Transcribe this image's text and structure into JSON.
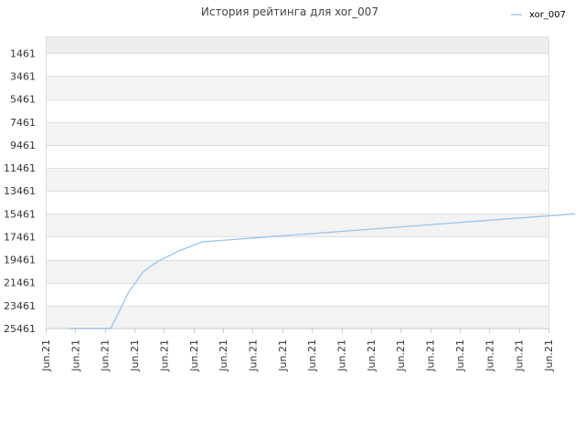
{
  "chart_data": {
    "type": "line",
    "title": "История рейтинга для xor_007",
    "xlabel": "",
    "ylabel": "",
    "y_axis_inverted": true,
    "ylim": [
      25461,
      0
    ],
    "y_ticks": [
      1461,
      3461,
      5461,
      7461,
      9461,
      11461,
      13461,
      15461,
      17461,
      19461,
      21461,
      23461,
      25461
    ],
    "x_tick_labels": [
      "Jun.21",
      "Jun.21",
      "Jun.21",
      "Jun.21",
      "Jun.21",
      "Jun.21",
      "Jun.21",
      "Jun.21",
      "Jun.21",
      "Jun.21",
      "Jun.21",
      "Jun.21",
      "Jun.21",
      "Jun.21",
      "Jun.21",
      "Jun.21",
      "Jun.21",
      "Jun.21"
    ],
    "grid": true,
    "legend_position": "top-right",
    "series": [
      {
        "name": "xor_007",
        "color": "#99c4ec",
        "x": [
          0.8,
          1.4,
          2.2,
          2.8,
          3.3,
          3.8,
          4.5,
          5.3,
          17.9
        ],
        "values": [
          25461,
          25461,
          25461,
          22300,
          20500,
          19600,
          18700,
          17900,
          15461
        ]
      }
    ]
  }
}
